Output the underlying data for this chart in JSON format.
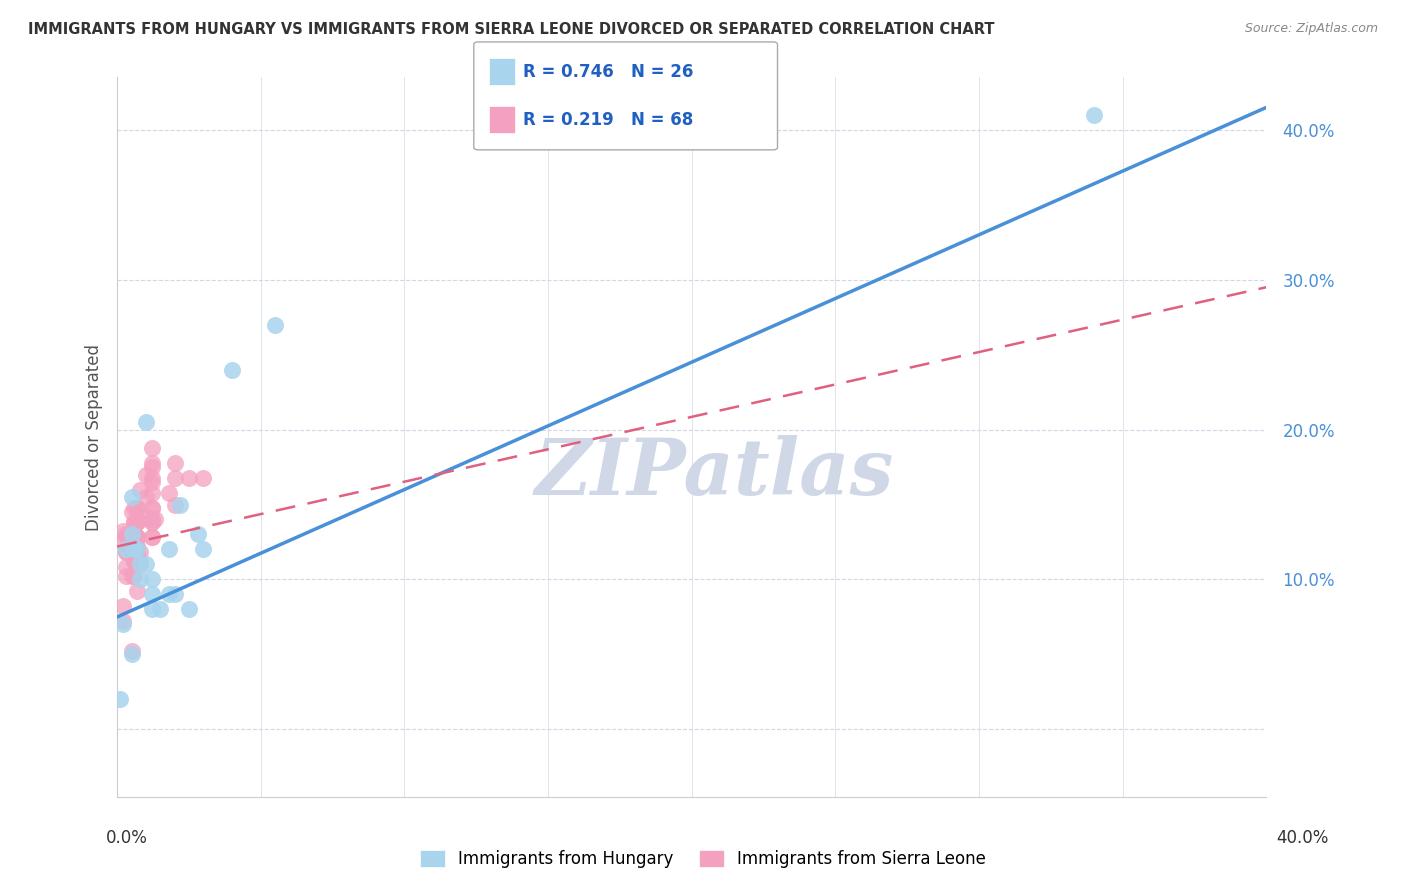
{
  "title": "IMMIGRANTS FROM HUNGARY VS IMMIGRANTS FROM SIERRA LEONE DIVORCED OR SEPARATED CORRELATION CHART",
  "source": "Source: ZipAtlas.com",
  "ylabel": "Divorced or Separated",
  "xlim": [
    0.0,
    0.4
  ],
  "ylim": [
    -0.045,
    0.435
  ],
  "yticks": [
    0.0,
    0.1,
    0.2,
    0.3,
    0.4
  ],
  "ytick_labels": [
    "",
    "10.0%",
    "20.0%",
    "30.0%",
    "40.0%"
  ],
  "xtick_labels": [
    "0.0%",
    "",
    "",
    "",
    "",
    "",
    "",
    "",
    "40.0%"
  ],
  "hungary_R": 0.746,
  "hungary_N": 26,
  "sierra_leone_R": 0.219,
  "sierra_leone_N": 68,
  "hungary_color": "#a8d4ed",
  "sierra_leone_color": "#f4a0c0",
  "hungary_line_color": "#4a90d9",
  "sierra_leone_line_color": "#e06080",
  "watermark": "ZIPatlas",
  "watermark_color": "#d0d8e8",
  "background_color": "#ffffff",
  "grid_color": "#d0d8e8",
  "hungary_points_x": [
    0.005,
    0.01,
    0.008,
    0.02,
    0.03,
    0.012,
    0.005,
    0.007,
    0.003,
    0.008,
    0.015,
    0.006,
    0.002,
    0.022,
    0.04,
    0.055,
    0.028,
    0.018,
    0.012,
    0.01,
    0.005,
    0.025,
    0.018,
    0.012,
    0.34,
    0.001
  ],
  "hungary_points_y": [
    0.155,
    0.205,
    0.1,
    0.09,
    0.12,
    0.08,
    0.13,
    0.12,
    0.12,
    0.11,
    0.08,
    0.12,
    0.07,
    0.15,
    0.24,
    0.27,
    0.13,
    0.09,
    0.09,
    0.11,
    0.05,
    0.08,
    0.12,
    0.1,
    0.41,
    0.02
  ],
  "sierra_leone_points_x": [
    0.002,
    0.003,
    0.005,
    0.008,
    0.01,
    0.006,
    0.012,
    0.007,
    0.008,
    0.003,
    0.006,
    0.007,
    0.012,
    0.01,
    0.005,
    0.002,
    0.007,
    0.006,
    0.01,
    0.006,
    0.007,
    0.008,
    0.012,
    0.006,
    0.007,
    0.006,
    0.007,
    0.003,
    0.003,
    0.007,
    0.012,
    0.007,
    0.006,
    0.003,
    0.007,
    0.006,
    0.007,
    0.003,
    0.007,
    0.007,
    0.012,
    0.006,
    0.006,
    0.007,
    0.002,
    0.002,
    0.012,
    0.02,
    0.012,
    0.007,
    0.013,
    0.02,
    0.025,
    0.012,
    0.012,
    0.02,
    0.007,
    0.012,
    0.006,
    0.007,
    0.03,
    0.012,
    0.012,
    0.018,
    0.005,
    0.007,
    0.012,
    0.007
  ],
  "sierra_leone_points_y": [
    0.125,
    0.13,
    0.145,
    0.16,
    0.17,
    0.138,
    0.165,
    0.122,
    0.112,
    0.128,
    0.148,
    0.118,
    0.175,
    0.142,
    0.102,
    0.132,
    0.118,
    0.112,
    0.155,
    0.128,
    0.14,
    0.118,
    0.168,
    0.128,
    0.112,
    0.138,
    0.118,
    0.102,
    0.108,
    0.118,
    0.178,
    0.148,
    0.112,
    0.118,
    0.138,
    0.122,
    0.128,
    0.118,
    0.138,
    0.148,
    0.188,
    0.118,
    0.112,
    0.138,
    0.072,
    0.082,
    0.158,
    0.15,
    0.14,
    0.128,
    0.14,
    0.168,
    0.168,
    0.138,
    0.148,
    0.178,
    0.118,
    0.128,
    0.102,
    0.118,
    0.168,
    0.128,
    0.138,
    0.158,
    0.052,
    0.092,
    0.148,
    0.128
  ],
  "hungary_line_x": [
    0.0,
    0.4
  ],
  "hungary_line_y": [
    0.075,
    0.415
  ],
  "sierra_leone_line_x": [
    0.0,
    0.4
  ],
  "sierra_leone_line_y": [
    0.122,
    0.295
  ]
}
